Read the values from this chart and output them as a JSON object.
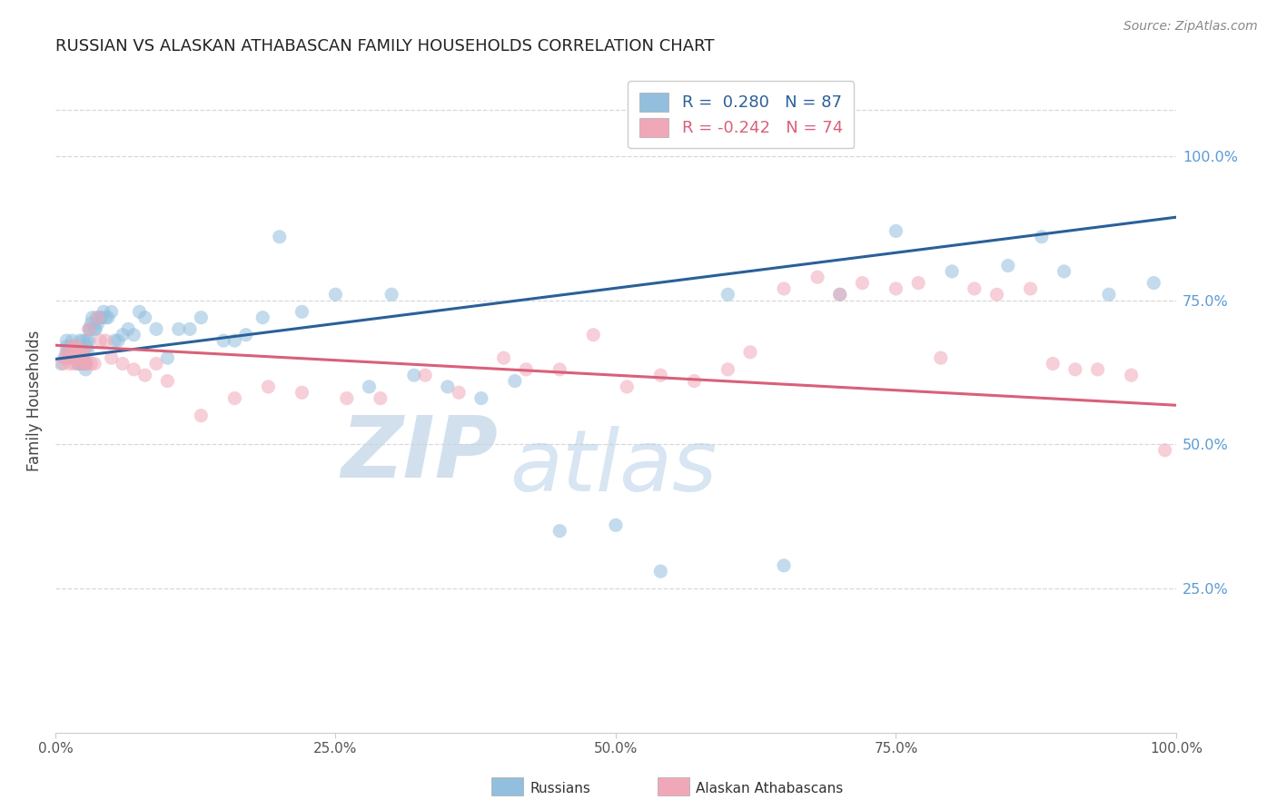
{
  "title": "RUSSIAN VS ALASKAN ATHABASCAN FAMILY HOUSEHOLDS CORRELATION CHART",
  "source": "Source: ZipAtlas.com",
  "ylabel": "Family Households",
  "ytick_labels": [
    "100.0%",
    "75.0%",
    "50.0%",
    "25.0%"
  ],
  "ytick_values": [
    1.0,
    0.75,
    0.5,
    0.25
  ],
  "xlim": [
    0,
    1
  ],
  "ylim": [
    0,
    1.15
  ],
  "blue_color": "#92bfdd",
  "pink_color": "#f0a8b8",
  "blue_line_color": "#2a6098",
  "pink_line_color": "#d9607a",
  "watermark_zip_color": "#c5d5e5",
  "watermark_atlas_color": "#ccdded",
  "background_color": "#ffffff",
  "grid_color": "#d8d8d8",
  "grid_linestyle": "--",
  "russians_x": [
    0.005,
    0.008,
    0.01,
    0.01,
    0.01,
    0.012,
    0.013,
    0.015,
    0.015,
    0.015,
    0.015,
    0.016,
    0.017,
    0.018,
    0.018,
    0.019,
    0.02,
    0.02,
    0.02,
    0.021,
    0.021,
    0.022,
    0.022,
    0.023,
    0.024,
    0.024,
    0.025,
    0.025,
    0.026,
    0.027,
    0.027,
    0.028,
    0.028,
    0.029,
    0.03,
    0.03,
    0.031,
    0.032,
    0.033,
    0.035,
    0.036,
    0.037,
    0.038,
    0.04,
    0.041,
    0.043,
    0.045,
    0.047,
    0.05,
    0.053,
    0.056,
    0.06,
    0.065,
    0.07,
    0.075,
    0.08,
    0.09,
    0.1,
    0.11,
    0.12,
    0.13,
    0.15,
    0.16,
    0.17,
    0.185,
    0.2,
    0.22,
    0.25,
    0.28,
    0.3,
    0.32,
    0.35,
    0.38,
    0.41,
    0.45,
    0.5,
    0.54,
    0.6,
    0.65,
    0.7,
    0.75,
    0.8,
    0.85,
    0.88,
    0.9,
    0.94,
    0.98
  ],
  "russians_y": [
    0.64,
    0.65,
    0.66,
    0.67,
    0.68,
    0.66,
    0.67,
    0.65,
    0.66,
    0.67,
    0.68,
    0.66,
    0.66,
    0.65,
    0.67,
    0.65,
    0.64,
    0.655,
    0.66,
    0.64,
    0.65,
    0.66,
    0.68,
    0.65,
    0.64,
    0.65,
    0.66,
    0.68,
    0.64,
    0.63,
    0.64,
    0.67,
    0.68,
    0.66,
    0.68,
    0.7,
    0.7,
    0.71,
    0.72,
    0.7,
    0.7,
    0.72,
    0.71,
    0.72,
    0.72,
    0.73,
    0.72,
    0.72,
    0.73,
    0.68,
    0.68,
    0.69,
    0.7,
    0.69,
    0.73,
    0.72,
    0.7,
    0.65,
    0.7,
    0.7,
    0.72,
    0.68,
    0.68,
    0.69,
    0.72,
    0.86,
    0.73,
    0.76,
    0.6,
    0.76,
    0.62,
    0.6,
    0.58,
    0.61,
    0.35,
    0.36,
    0.28,
    0.76,
    0.29,
    0.76,
    0.87,
    0.8,
    0.81,
    0.86,
    0.8,
    0.76,
    0.78
  ],
  "athabascans_x": [
    0.007,
    0.009,
    0.01,
    0.012,
    0.013,
    0.015,
    0.015,
    0.016,
    0.017,
    0.018,
    0.019,
    0.02,
    0.021,
    0.022,
    0.023,
    0.024,
    0.025,
    0.026,
    0.027,
    0.028,
    0.03,
    0.032,
    0.035,
    0.038,
    0.04,
    0.045,
    0.05,
    0.06,
    0.07,
    0.08,
    0.09,
    0.1,
    0.13,
    0.16,
    0.19,
    0.22,
    0.26,
    0.29,
    0.33,
    0.36,
    0.4,
    0.42,
    0.45,
    0.48,
    0.51,
    0.54,
    0.57,
    0.6,
    0.62,
    0.65,
    0.68,
    0.7,
    0.72,
    0.75,
    0.77,
    0.79,
    0.82,
    0.84,
    0.87,
    0.89,
    0.91,
    0.93,
    0.96,
    0.99
  ],
  "athabascans_y": [
    0.64,
    0.65,
    0.66,
    0.65,
    0.64,
    0.66,
    0.67,
    0.66,
    0.64,
    0.65,
    0.67,
    0.66,
    0.66,
    0.66,
    0.64,
    0.66,
    0.65,
    0.66,
    0.64,
    0.64,
    0.7,
    0.64,
    0.64,
    0.72,
    0.68,
    0.68,
    0.65,
    0.64,
    0.63,
    0.62,
    0.64,
    0.61,
    0.55,
    0.58,
    0.6,
    0.59,
    0.58,
    0.58,
    0.62,
    0.59,
    0.65,
    0.63,
    0.63,
    0.69,
    0.6,
    0.62,
    0.61,
    0.63,
    0.66,
    0.77,
    0.79,
    0.76,
    0.78,
    0.77,
    0.78,
    0.65,
    0.77,
    0.76,
    0.77,
    0.64,
    0.63,
    0.63,
    0.62,
    0.49
  ],
  "blue_trend_x": [
    0,
    1
  ],
  "blue_trend_y": [
    0.648,
    0.894
  ],
  "pink_trend_x": [
    0,
    1
  ],
  "pink_trend_y": [
    0.672,
    0.568
  ]
}
